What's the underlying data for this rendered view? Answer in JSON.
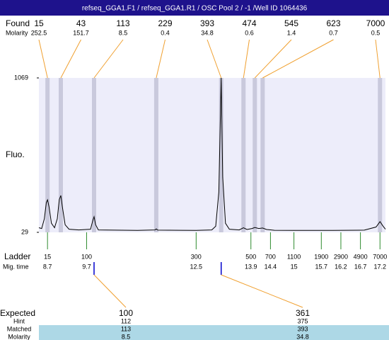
{
  "chart_data": {
    "type": "electropherogram",
    "title": "refseq_GGA1.F1 / refseq_GGA1.R1 / OSC Pool 2 / -1 /Well ID 1064436",
    "ylabel": "Fluo.",
    "ylim": [
      29,
      1069
    ],
    "yticks": [
      29,
      1069
    ],
    "xlim": [
      8.48,
      17.34
    ],
    "found": {
      "label": "Found",
      "sublabel": "Molarity",
      "sizes": [
        15,
        43,
        113,
        229,
        393,
        474,
        545,
        623,
        7000
      ],
      "molarity": [
        252.5,
        151.7,
        8.5,
        0.4,
        34.8,
        0.6,
        1.4,
        0.7,
        0.5
      ],
      "mig_time": [
        8.7,
        9.04,
        9.89,
        11.48,
        13.14,
        13.71,
        14.0,
        14.2,
        17.2
      ]
    },
    "ladder": {
      "label": "Ladder",
      "sublabel": "Mig. time",
      "sizes": [
        15,
        100,
        300,
        500,
        700,
        1100,
        1900,
        2900,
        4900,
        7000
      ],
      "mig_time": [
        8.7,
        9.7,
        12.5,
        13.9,
        14.4,
        15,
        15.7,
        16.2,
        16.7,
        17.2
      ]
    },
    "expected": {
      "labels": [
        "Expected",
        "Hint",
        "Matched",
        "Molarity"
      ],
      "rows": [
        [
          100,
          361
        ],
        [
          112,
          375
        ],
        [
          113,
          393
        ],
        [
          8.5,
          34.8
        ]
      ]
    },
    "trace": {
      "color": "#000000",
      "x": [
        8.48,
        8.55,
        8.62,
        8.67,
        8.7,
        8.74,
        8.8,
        8.88,
        8.95,
        9.0,
        9.04,
        9.08,
        9.15,
        9.25,
        9.5,
        9.8,
        9.86,
        9.89,
        9.93,
        10.0,
        11.0,
        11.45,
        11.48,
        11.52,
        12.5,
        12.9,
        13.0,
        13.08,
        13.14,
        13.18,
        13.25,
        13.35,
        13.6,
        13.71,
        13.8,
        13.93,
        14.0,
        14.1,
        14.2,
        14.3,
        14.5,
        15,
        16,
        16.8,
        17.1,
        17.2,
        17.28,
        17.34
      ],
      "values": [
        60,
        55,
        120,
        230,
        248,
        200,
        90,
        60,
        120,
        250,
        277,
        200,
        80,
        50,
        45,
        50,
        110,
        134,
        80,
        45,
        42,
        45,
        52,
        44,
        42,
        45,
        70,
        300,
        1069,
        400,
        90,
        50,
        45,
        60,
        48,
        55,
        62,
        55,
        58,
        48,
        43,
        42,
        42,
        44,
        65,
        101,
        70,
        50
      ]
    },
    "band_color": "#c9c9dc",
    "plot_color": "#ededfa",
    "link_color": "#f0a030",
    "ladder_color": "#2e8b2e",
    "match_color": "#0000cc",
    "highlight_color": "#add8e6"
  }
}
